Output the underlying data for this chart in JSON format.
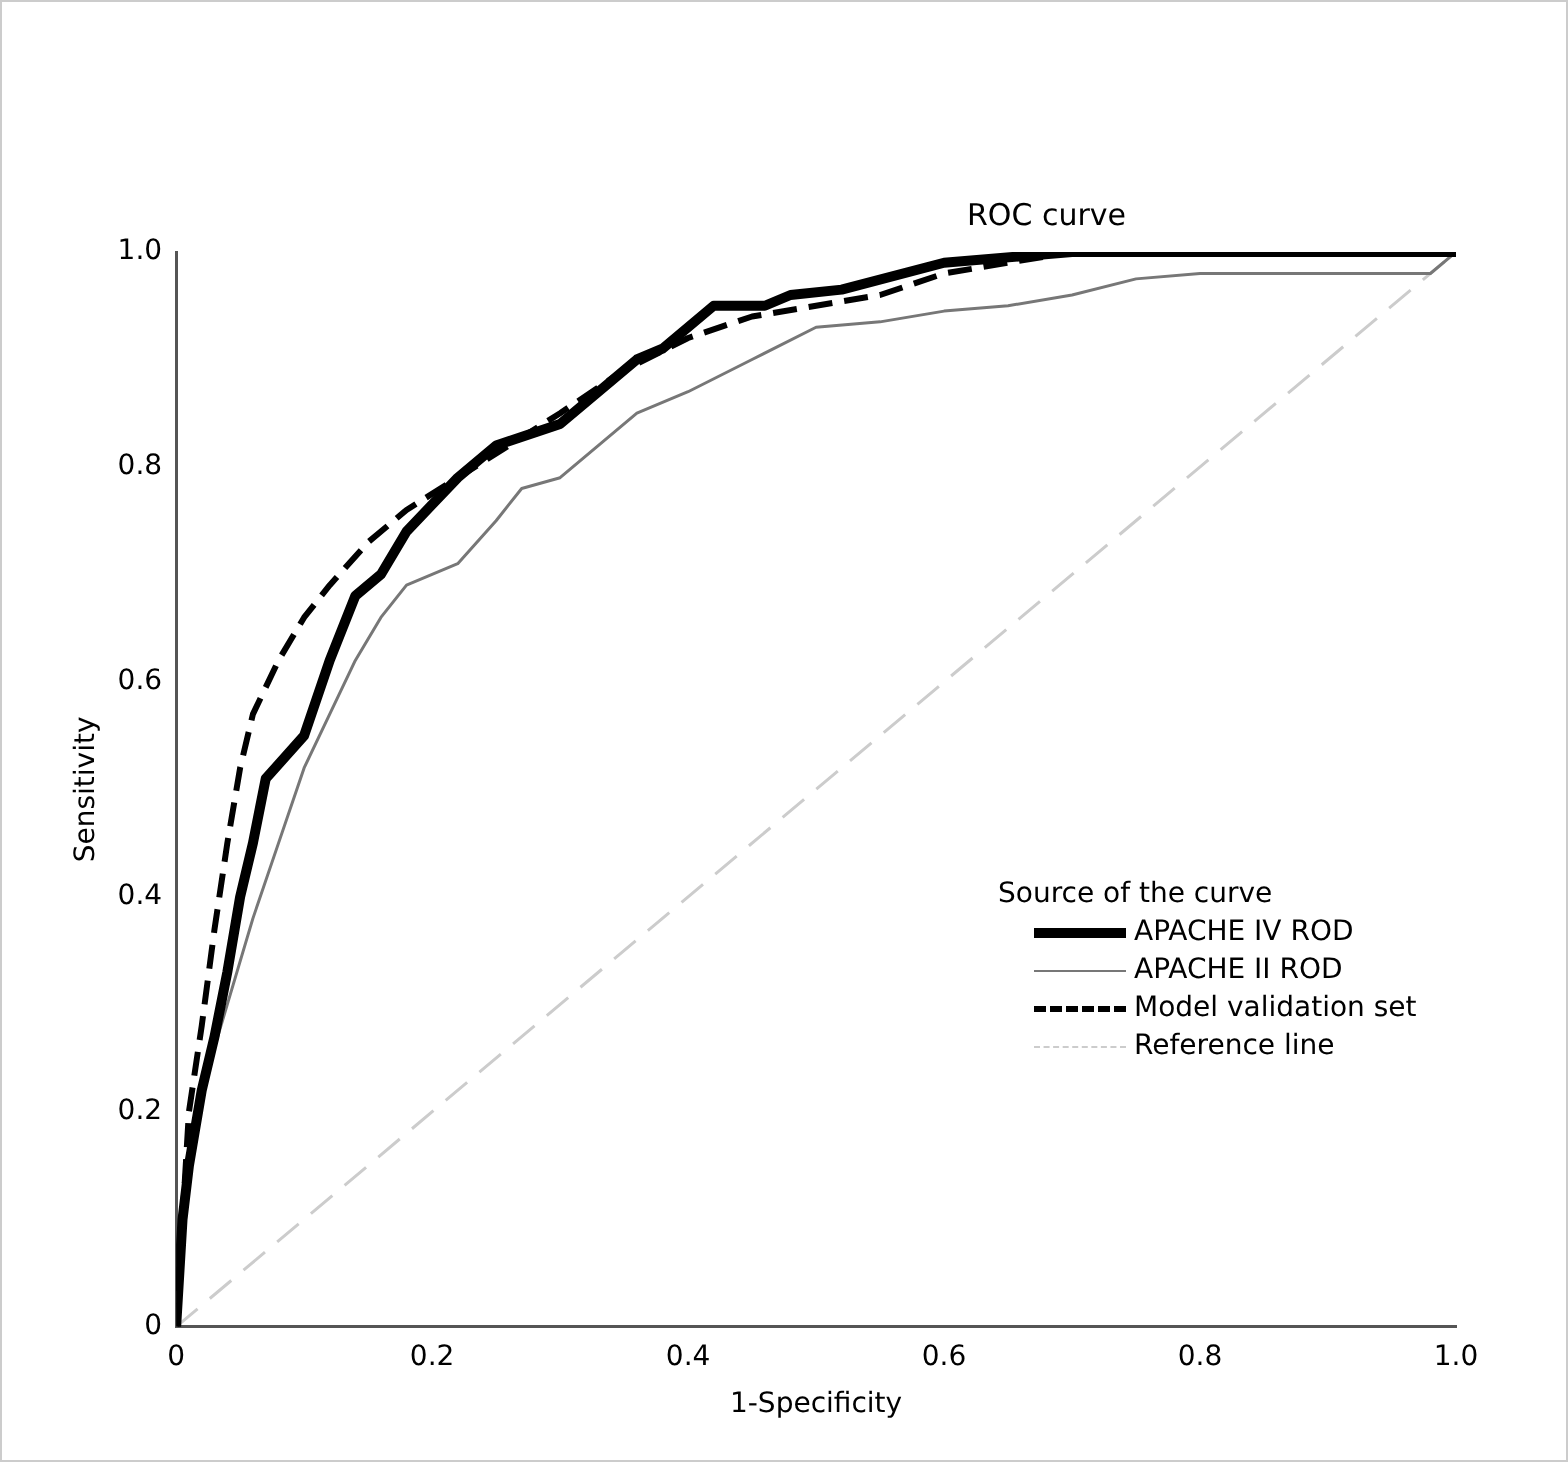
{
  "chart_data": {
    "type": "line",
    "title": "ROC curve",
    "xlabel": "1-Specificity",
    "ylabel": "Sensitivity",
    "legend_title": "Source of the curve",
    "legend": "bottom right",
    "grid": false,
    "marker": "none",
    "xlim": [
      0,
      1
    ],
    "ylim": [
      0,
      1
    ],
    "xticks": [
      0,
      0.2,
      0.4,
      0.6,
      0.8,
      {
        "value": 1,
        "label": "1.0"
      }
    ],
    "yticks": [
      0,
      0.2,
      0.4,
      0.6,
      0.8,
      {
        "value": 1,
        "label": "1.0"
      }
    ],
    "series": [
      {
        "name": "APACHE IV ROD",
        "color": "#000000",
        "line_style": "solid",
        "x": [
          0,
          0.005,
          0.01,
          0.02,
          0.03,
          0.04,
          0.05,
          0.06,
          0.07,
          0.1,
          0.12,
          0.14,
          0.16,
          0.18,
          0.22,
          0.25,
          0.3,
          0.33,
          0.36,
          0.38,
          0.42,
          0.46,
          0.48,
          0.52,
          0.6,
          0.7,
          1
        ],
        "values": [
          0,
          0.1,
          0.15,
          0.22,
          0.27,
          0.33,
          0.4,
          0.45,
          0.51,
          0.55,
          0.62,
          0.68,
          0.7,
          0.74,
          0.79,
          0.82,
          0.84,
          0.87,
          0.9,
          0.91,
          0.95,
          0.95,
          0.96,
          0.965,
          0.99,
          1,
          1
        ]
      },
      {
        "name": "APACHE II ROD",
        "color": "#777777",
        "line_style": "solid",
        "x": [
          0,
          0.01,
          0.02,
          0.04,
          0.06,
          0.08,
          0.1,
          0.12,
          0.14,
          0.16,
          0.18,
          0.2,
          0.22,
          0.25,
          0.27,
          0.3,
          0.33,
          0.36,
          0.4,
          0.45,
          0.5,
          0.55,
          0.6,
          0.65,
          0.7,
          0.75,
          0.8,
          0.98,
          1
        ],
        "values": [
          0,
          0.15,
          0.22,
          0.3,
          0.38,
          0.45,
          0.52,
          0.57,
          0.62,
          0.66,
          0.69,
          0.7,
          0.71,
          0.75,
          0.78,
          0.79,
          0.82,
          0.85,
          0.87,
          0.9,
          0.93,
          0.935,
          0.945,
          0.95,
          0.96,
          0.975,
          0.98,
          0.98,
          1
        ]
      },
      {
        "name": "Model validation set",
        "color": "#000000",
        "line_style": "dashed",
        "x": [
          0,
          0.01,
          0.02,
          0.03,
          0.04,
          0.05,
          0.06,
          0.08,
          0.1,
          0.12,
          0.15,
          0.18,
          0.22,
          0.26,
          0.3,
          0.35,
          0.4,
          0.45,
          0.5,
          0.55,
          0.6,
          0.65,
          0.7,
          1
        ],
        "values": [
          0,
          0.2,
          0.28,
          0.37,
          0.45,
          0.52,
          0.57,
          0.62,
          0.66,
          0.69,
          0.73,
          0.76,
          0.79,
          0.82,
          0.85,
          0.89,
          0.92,
          0.94,
          0.95,
          0.96,
          0.98,
          0.99,
          1,
          1
        ]
      },
      {
        "name": "Reference line",
        "color": "#cccccc",
        "line_style": "dashed",
        "x": [
          0,
          1
        ],
        "values": [
          0,
          1
        ]
      }
    ]
  }
}
